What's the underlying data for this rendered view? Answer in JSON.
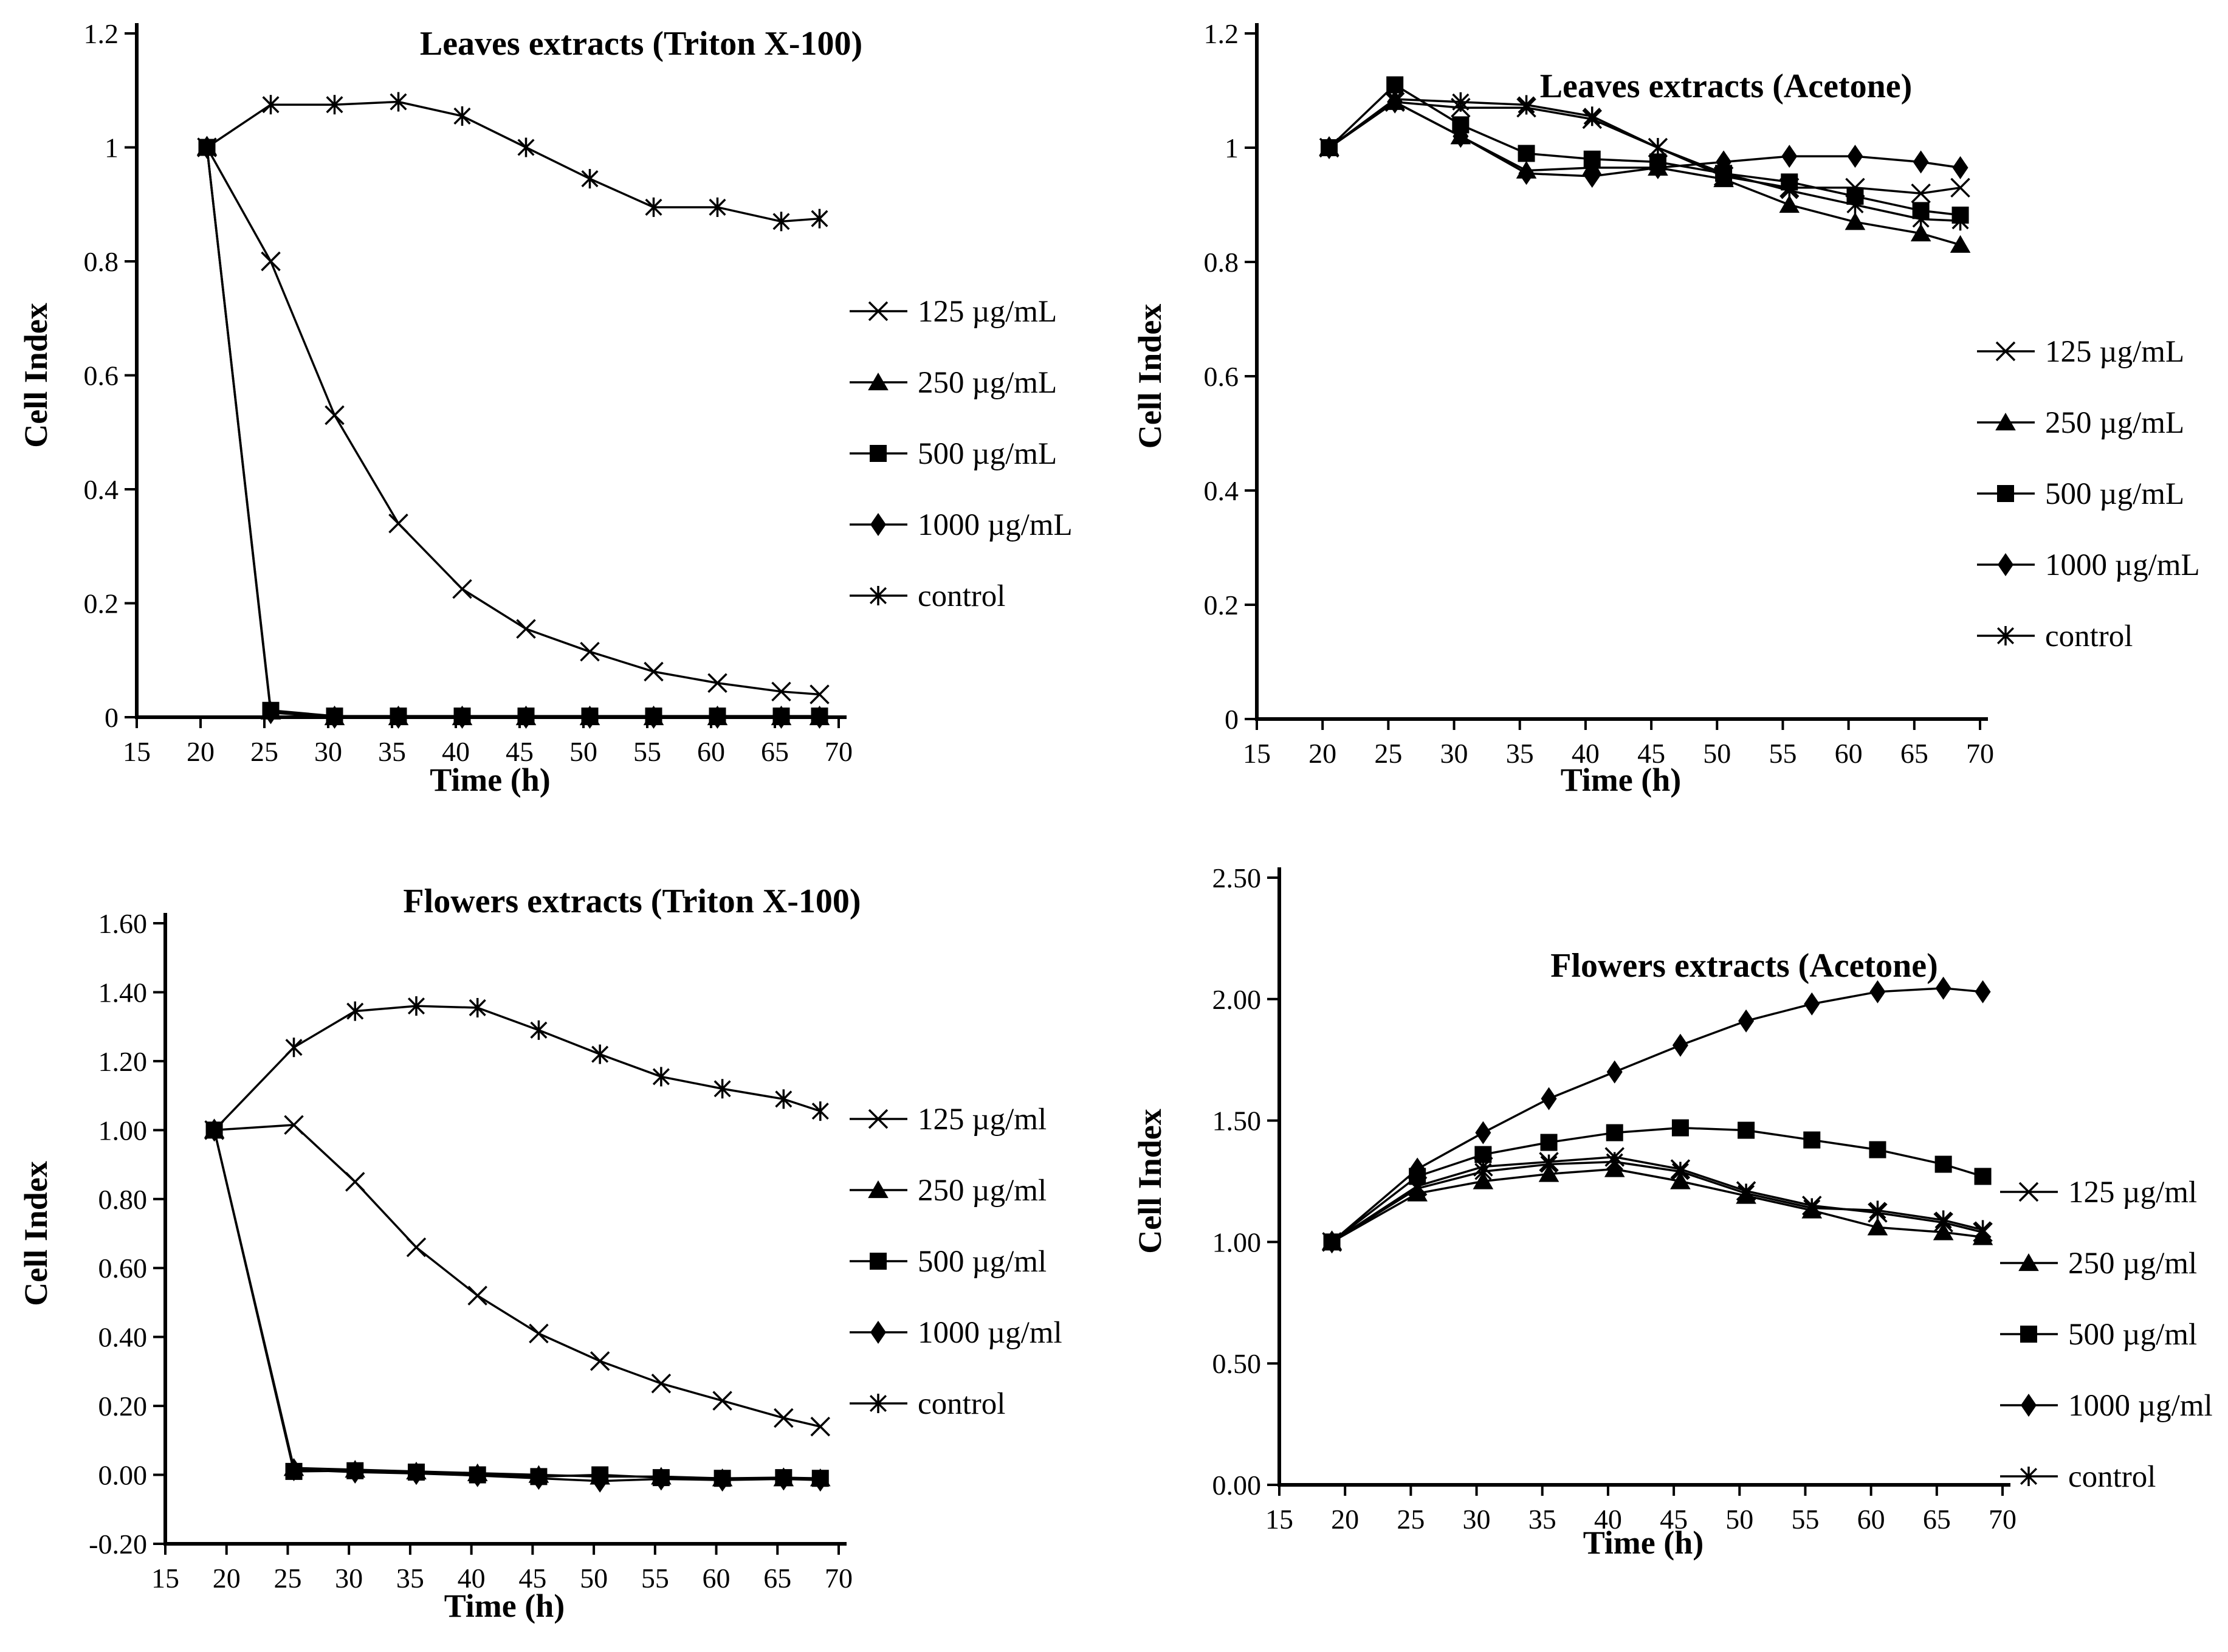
{
  "chart_data": [
    {
      "id": "leaves-triton-x100",
      "type": "line",
      "title": "Leaves extracts (Triton X-100)",
      "xlabel": "Time (h)",
      "ylabel": "Cell Index",
      "xlim": [
        15,
        70
      ],
      "xticks": [
        15,
        20,
        25,
        30,
        35,
        40,
        45,
        50,
        55,
        60,
        65,
        70
      ],
      "ylim": [
        0,
        1.2
      ],
      "yticks": [
        0,
        0.2,
        0.4,
        0.6,
        0.8,
        1,
        1.2
      ],
      "ytick_labels": [
        "0",
        "0.2",
        "0.4",
        "0.6",
        "0.8",
        "1",
        "1.2"
      ],
      "grid": false,
      "legend_position": "right",
      "x": [
        20.5,
        25.5,
        30.5,
        35.5,
        40.5,
        45.5,
        50.5,
        55.5,
        60.5,
        65.5,
        68.5
      ],
      "series": [
        {
          "name": "125 µg/mL",
          "marker": "x-cross",
          "values": [
            1.0,
            0.8,
            0.53,
            0.34,
            0.225,
            0.155,
            0.115,
            0.08,
            0.06,
            0.045,
            0.04
          ]
        },
        {
          "name": "250 µg/mL",
          "marker": "triangle",
          "values": [
            1.0,
            0.01,
            0.0,
            0.0,
            0.0,
            0.0,
            0.0,
            0.0,
            0.0,
            0.0,
            0.0
          ]
        },
        {
          "name": "500 µg/mL",
          "marker": "square",
          "values": [
            1.0,
            0.012,
            0.002,
            0.002,
            0.002,
            0.002,
            0.002,
            0.002,
            0.002,
            0.002,
            0.002
          ]
        },
        {
          "name": "1000 µg/mL",
          "marker": "diamond",
          "values": [
            1.0,
            0.008,
            0.0,
            0.0,
            0.0,
            0.0,
            0.0,
            0.0,
            0.0,
            0.0,
            0.0
          ]
        },
        {
          "name": "control",
          "marker": "asterisk",
          "values": [
            1.0,
            1.075,
            1.075,
            1.08,
            1.055,
            1.0,
            0.945,
            0.895,
            0.895,
            0.87,
            0.875
          ]
        }
      ]
    },
    {
      "id": "leaves-acetone",
      "type": "line",
      "title": "Leaves extracts (Acetone)",
      "xlabel": "Time  (h)",
      "ylabel": "Cell Index",
      "xlim": [
        15,
        70
      ],
      "xticks": [
        15,
        20,
        25,
        30,
        35,
        40,
        45,
        50,
        55,
        60,
        65,
        70
      ],
      "ylim": [
        0,
        1.2
      ],
      "yticks": [
        0,
        0.2,
        0.4,
        0.6,
        0.8,
        1,
        1.2
      ],
      "ytick_labels": [
        "0",
        "0.2",
        "0.4",
        "0.6",
        "0.8",
        "1",
        "1.2"
      ],
      "grid": false,
      "legend_position": "right",
      "x": [
        20.5,
        25.5,
        30.5,
        35.5,
        40.5,
        45.5,
        50.5,
        55.5,
        60.5,
        65.5,
        68.5
      ],
      "series": [
        {
          "name": "125 µg/mL",
          "marker": "x-cross",
          "values": [
            1.0,
            1.08,
            1.07,
            1.07,
            1.05,
            1.0,
            0.95,
            0.93,
            0.93,
            0.92,
            0.93
          ]
        },
        {
          "name": "250 µg/mL",
          "marker": "triangle",
          "values": [
            1.0,
            1.08,
            1.02,
            0.96,
            0.965,
            0.965,
            0.945,
            0.9,
            0.87,
            0.85,
            0.83
          ]
        },
        {
          "name": "500 µg/mL",
          "marker": "square",
          "values": [
            1.0,
            1.11,
            1.04,
            0.99,
            0.98,
            0.975,
            0.955,
            0.94,
            0.915,
            0.89,
            0.882
          ]
        },
        {
          "name": "1000 µg/mL",
          "marker": "diamond",
          "values": [
            1.0,
            1.08,
            1.02,
            0.955,
            0.95,
            0.965,
            0.975,
            0.985,
            0.985,
            0.975,
            0.965
          ]
        },
        {
          "name": "control",
          "marker": "asterisk",
          "values": [
            1.0,
            1.085,
            1.08,
            1.075,
            1.055,
            1.0,
            0.955,
            0.925,
            0.9,
            0.875,
            0.872
          ]
        }
      ]
    },
    {
      "id": "flowers-triton-x100",
      "type": "line",
      "title": "Flowers extracts (Triton X-100)",
      "xlabel": "Time (h)",
      "ylabel": "Cell Index",
      "xlim": [
        15,
        70
      ],
      "xticks": [
        15,
        20,
        25,
        30,
        35,
        40,
        45,
        50,
        55,
        60,
        65,
        70
      ],
      "ylim": [
        -0.2,
        1.6
      ],
      "yticks": [
        -0.2,
        0.0,
        0.2,
        0.4,
        0.6,
        0.8,
        1.0,
        1.2,
        1.4,
        1.6
      ],
      "ytick_labels": [
        "-0.20",
        "0.00",
        "0.20",
        "0.40",
        "0.60",
        "0.80",
        "1.00",
        "1.20",
        "1.40",
        "1.60"
      ],
      "grid": false,
      "legend_position": "right",
      "x": [
        19,
        25.5,
        30.5,
        35.5,
        40.5,
        45.5,
        50.5,
        55.5,
        60.5,
        65.5,
        68.5
      ],
      "series": [
        {
          "name": "125 µg/ml",
          "marker": "x-cross",
          "values": [
            1.0,
            1.015,
            0.85,
            0.66,
            0.52,
            0.41,
            0.33,
            0.265,
            0.215,
            0.165,
            0.14
          ]
        },
        {
          "name": "250 µg/ml",
          "marker": "triangle",
          "values": [
            1.0,
            0.02,
            0.015,
            0.01,
            0.005,
            0.0,
            -0.005,
            -0.005,
            -0.01,
            -0.01,
            -0.01
          ]
        },
        {
          "name": "500 µg/ml",
          "marker": "square",
          "values": [
            1.0,
            0.01,
            0.012,
            0.008,
            0.0,
            -0.005,
            0.0,
            -0.008,
            -0.01,
            -0.008,
            -0.01
          ]
        },
        {
          "name": "1000 µg/ml",
          "marker": "diamond",
          "values": [
            1.0,
            0.015,
            0.008,
            0.004,
            -0.002,
            -0.01,
            -0.018,
            -0.012,
            -0.015,
            -0.012,
            -0.015
          ]
        },
        {
          "name": "control",
          "marker": "asterisk",
          "values": [
            1.0,
            1.24,
            1.345,
            1.36,
            1.355,
            1.29,
            1.22,
            1.155,
            1.12,
            1.09,
            1.055
          ]
        }
      ]
    },
    {
      "id": "flowers-acetone",
      "type": "line",
      "title": "Flowers extracts (Acetone)",
      "xlabel": "Time (h)",
      "ylabel": "Cell Index",
      "xlim": [
        15,
        70
      ],
      "xticks": [
        15,
        20,
        25,
        30,
        35,
        40,
        45,
        50,
        55,
        60,
        65,
        70
      ],
      "ylim": [
        0.0,
        2.5
      ],
      "yticks": [
        0.0,
        0.5,
        1.0,
        1.5,
        2.0,
        2.5
      ],
      "ytick_labels": [
        "0.00",
        "0.50",
        "1.00",
        "1.50",
        "2.00",
        "2.50"
      ],
      "grid": false,
      "legend_position": "right",
      "x": [
        19,
        25.5,
        30.5,
        35.5,
        40.5,
        45.5,
        50.5,
        55.5,
        60.5,
        65.5,
        68.5
      ],
      "series": [
        {
          "name": "125 µg/ml",
          "marker": "x-cross",
          "values": [
            1.0,
            1.23,
            1.31,
            1.33,
            1.35,
            1.3,
            1.21,
            1.15,
            1.12,
            1.08,
            1.04
          ]
        },
        {
          "name": "250 µg/ml",
          "marker": "triangle",
          "values": [
            1.0,
            1.2,
            1.25,
            1.28,
            1.3,
            1.25,
            1.19,
            1.13,
            1.06,
            1.04,
            1.02
          ]
        },
        {
          "name": "500 µg/ml",
          "marker": "square",
          "values": [
            1.0,
            1.27,
            1.36,
            1.41,
            1.45,
            1.47,
            1.46,
            1.42,
            1.38,
            1.32,
            1.27
          ]
        },
        {
          "name": "1000 µg/ml",
          "marker": "diamond",
          "values": [
            1.0,
            1.3,
            1.45,
            1.59,
            1.7,
            1.81,
            1.91,
            1.98,
            2.03,
            2.045,
            2.03
          ]
        },
        {
          "name": "control",
          "marker": "asterisk",
          "values": [
            1.0,
            1.22,
            1.29,
            1.32,
            1.33,
            1.29,
            1.2,
            1.14,
            1.13,
            1.09,
            1.05
          ]
        }
      ]
    }
  ]
}
